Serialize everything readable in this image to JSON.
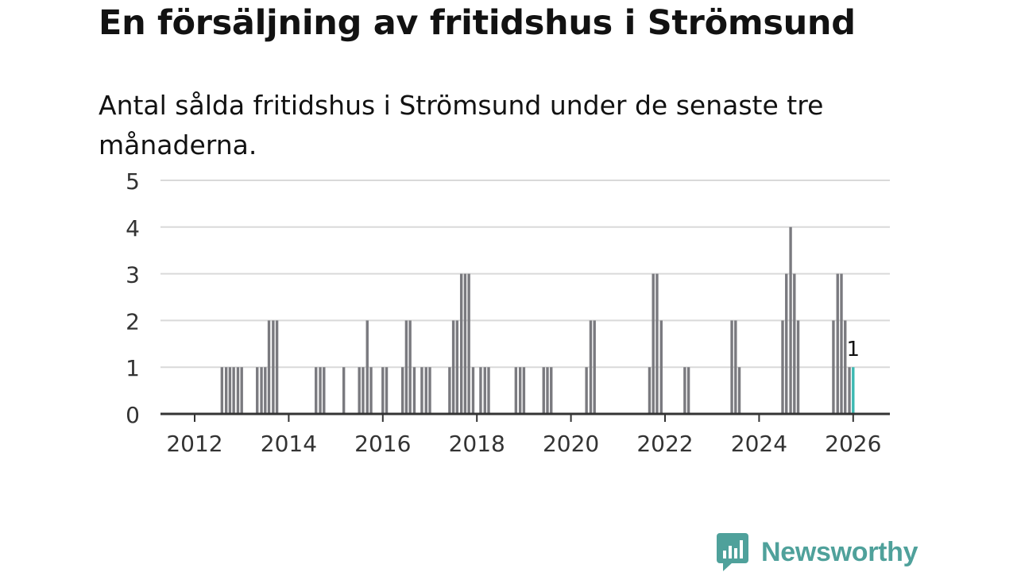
{
  "header": {
    "title": "En försäljning av fritidshus i Strömsund",
    "subtitle": "Antal sålda fritidshus i Strömsund under de senaste tre månaderna."
  },
  "brand": {
    "name": "Newsworthy",
    "color": "#4fa19b"
  },
  "chart_data": {
    "type": "bar",
    "title": "En försäljning av fritidshus i Strömsund",
    "subtitle": "Antal sålda fritidshus i Strömsund under de senaste tre månaderna.",
    "xlabel": "",
    "ylabel": "",
    "ylim": [
      0,
      5
    ],
    "y_ticks": [
      "0",
      "1",
      "2",
      "3",
      "4",
      "5"
    ],
    "x_ticks": [
      "2012",
      "2014",
      "2016",
      "2018",
      "2020",
      "2022",
      "2024",
      "2026"
    ],
    "grid": true,
    "bar_color": "#7a7a7f",
    "highlight_color": "#3cb8b2",
    "annotation": {
      "label": "1",
      "year": 2026.0
    },
    "series": [
      {
        "name": "Antal sålda fritidshus",
        "points": [
          {
            "x": 2012.58,
            "y": 1
          },
          {
            "x": 2012.67,
            "y": 1
          },
          {
            "x": 2012.75,
            "y": 1
          },
          {
            "x": 2012.83,
            "y": 1
          },
          {
            "x": 2012.92,
            "y": 1
          },
          {
            "x": 2013.0,
            "y": 1
          },
          {
            "x": 2013.33,
            "y": 1
          },
          {
            "x": 2013.42,
            "y": 1
          },
          {
            "x": 2013.5,
            "y": 1
          },
          {
            "x": 2013.58,
            "y": 2
          },
          {
            "x": 2013.67,
            "y": 2
          },
          {
            "x": 2013.75,
            "y": 2
          },
          {
            "x": 2014.58,
            "y": 1
          },
          {
            "x": 2014.67,
            "y": 1
          },
          {
            "x": 2014.75,
            "y": 1
          },
          {
            "x": 2015.17,
            "y": 1
          },
          {
            "x": 2015.5,
            "y": 1
          },
          {
            "x": 2015.58,
            "y": 1
          },
          {
            "x": 2015.67,
            "y": 2
          },
          {
            "x": 2015.75,
            "y": 1
          },
          {
            "x": 2016.0,
            "y": 1
          },
          {
            "x": 2016.08,
            "y": 1
          },
          {
            "x": 2016.42,
            "y": 1
          },
          {
            "x": 2016.5,
            "y": 2
          },
          {
            "x": 2016.58,
            "y": 2
          },
          {
            "x": 2016.67,
            "y": 1
          },
          {
            "x": 2016.83,
            "y": 1
          },
          {
            "x": 2016.92,
            "y": 1
          },
          {
            "x": 2017.0,
            "y": 1
          },
          {
            "x": 2017.42,
            "y": 1
          },
          {
            "x": 2017.5,
            "y": 2
          },
          {
            "x": 2017.58,
            "y": 2
          },
          {
            "x": 2017.67,
            "y": 3
          },
          {
            "x": 2017.75,
            "y": 3
          },
          {
            "x": 2017.83,
            "y": 3
          },
          {
            "x": 2017.92,
            "y": 1
          },
          {
            "x": 2018.08,
            "y": 1
          },
          {
            "x": 2018.17,
            "y": 1
          },
          {
            "x": 2018.25,
            "y": 1
          },
          {
            "x": 2018.83,
            "y": 1
          },
          {
            "x": 2018.92,
            "y": 1
          },
          {
            "x": 2019.0,
            "y": 1
          },
          {
            "x": 2019.42,
            "y": 1
          },
          {
            "x": 2019.5,
            "y": 1
          },
          {
            "x": 2019.58,
            "y": 1
          },
          {
            "x": 2020.33,
            "y": 1
          },
          {
            "x": 2020.42,
            "y": 2
          },
          {
            "x": 2020.5,
            "y": 2
          },
          {
            "x": 2021.67,
            "y": 1
          },
          {
            "x": 2021.75,
            "y": 3
          },
          {
            "x": 2021.83,
            "y": 3
          },
          {
            "x": 2021.92,
            "y": 2
          },
          {
            "x": 2022.42,
            "y": 1
          },
          {
            "x": 2022.5,
            "y": 1
          },
          {
            "x": 2023.42,
            "y": 2
          },
          {
            "x": 2023.5,
            "y": 2
          },
          {
            "x": 2023.58,
            "y": 1
          },
          {
            "x": 2024.5,
            "y": 2
          },
          {
            "x": 2024.58,
            "y": 3
          },
          {
            "x": 2024.67,
            "y": 4
          },
          {
            "x": 2024.75,
            "y": 3
          },
          {
            "x": 2024.83,
            "y": 2
          },
          {
            "x": 2025.58,
            "y": 2
          },
          {
            "x": 2025.67,
            "y": 3
          },
          {
            "x": 2025.75,
            "y": 3
          },
          {
            "x": 2025.83,
            "y": 2
          },
          {
            "x": 2025.92,
            "y": 1
          },
          {
            "x": 2026.0,
            "y": 1,
            "highlight": true
          }
        ]
      }
    ]
  }
}
